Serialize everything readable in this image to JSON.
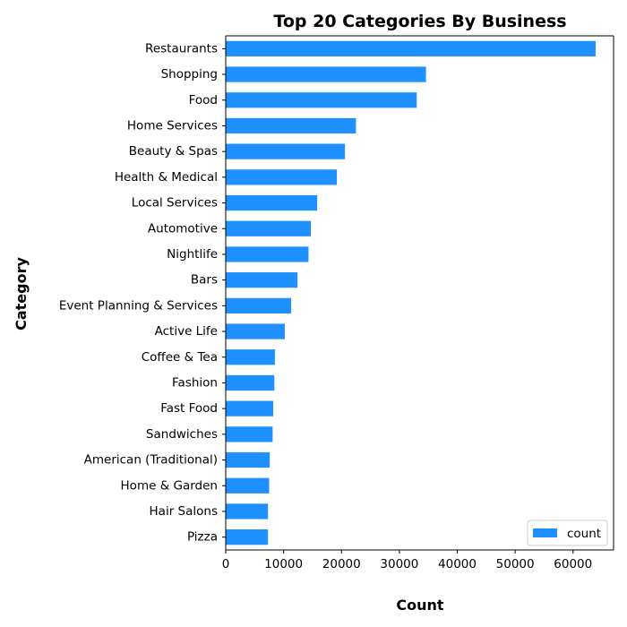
{
  "chart_data": {
    "type": "bar",
    "orientation": "horizontal",
    "title": "Top 20 Categories By Business",
    "xlabel": "Count",
    "ylabel": "Category",
    "xlim": [
      0,
      67000
    ],
    "xticks": [
      0,
      10000,
      20000,
      30000,
      40000,
      50000,
      60000
    ],
    "grid": false,
    "legend_position": "bottom-right",
    "color": "#1e90ff",
    "categories": [
      "Restaurants",
      "Shopping",
      "Food",
      "Home Services",
      "Beauty & Spas",
      "Health & Medical",
      "Local Services",
      "Automotive",
      "Nightlife",
      "Bars",
      "Event Planning & Services",
      "Active Life",
      "Coffee & Tea",
      "Fashion",
      "Fast Food",
      "Sandwiches",
      "American (Traditional)",
      "Home & Garden",
      "Hair Salons",
      "Pizza"
    ],
    "series": [
      {
        "name": "count",
        "values": [
          63900,
          34600,
          33000,
          22500,
          20600,
          19200,
          15800,
          14700,
          14300,
          12400,
          11300,
          10200,
          8500,
          8400,
          8200,
          8100,
          7600,
          7500,
          7300,
          7300
        ]
      }
    ]
  }
}
